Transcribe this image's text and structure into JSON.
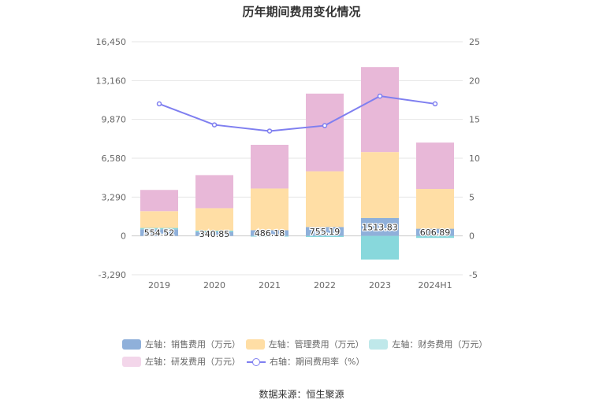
{
  "source_note": "数据来源：恒生聚源",
  "chart_data": {
    "type": "bar",
    "title": "历年期间费用变化情况",
    "categories": [
      "2019",
      "2020",
      "2021",
      "2022",
      "2023",
      "2024H1"
    ],
    "left_axis": {
      "ticks": [
        "16,450",
        "13,160",
        "9,870",
        "6,580",
        "3,290",
        "0",
        "-3,290"
      ],
      "ylim": [
        -3290,
        16450
      ]
    },
    "right_axis": {
      "ticks": [
        "25",
        "20",
        "15",
        "10",
        "5",
        "0",
        "-5"
      ],
      "ylim": [
        -5,
        25
      ]
    },
    "series": [
      {
        "name": "左轴：销售费用（万元）",
        "type": "bar",
        "color": "#8fb0da",
        "values": [
          554.52,
          340.85,
          486.18,
          755.19,
          1513.83,
          606.89
        ],
        "labels": [
          "554.52",
          "340.85",
          "486.18",
          "755.19",
          "1513.83",
          "606.89"
        ]
      },
      {
        "name": "左轴：管理费用（万元）",
        "type": "bar",
        "color": "#ffdea5",
        "values": [
          1420,
          1900,
          3530,
          4720,
          5590,
          3370
        ]
      },
      {
        "name": "左轴：财务费用（万元）",
        "type": "bar",
        "color": "#88d8dc",
        "values": [
          120,
          110,
          -60,
          -90,
          -2000,
          -170
        ]
      },
      {
        "name": "左轴：研发费用（万元）",
        "type": "bar",
        "color": "#e8b8d8",
        "values": [
          1800,
          2800,
          3700,
          6580,
          7200,
          3930
        ]
      },
      {
        "name": "右轴：期间费用率（%）",
        "type": "line",
        "axis": "right",
        "color": "#7f7ff0",
        "values": [
          17.0,
          14.3,
          13.5,
          14.2,
          18.0,
          17.0
        ]
      }
    ]
  }
}
